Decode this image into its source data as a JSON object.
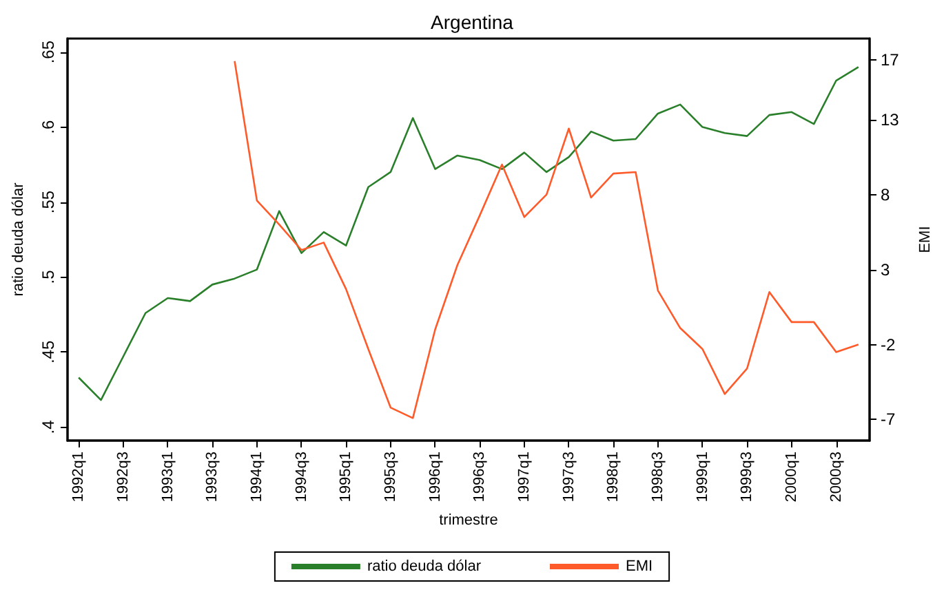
{
  "chart_data": {
    "type": "line",
    "title": "Argentina",
    "xlabel": "trimestre",
    "ylabel": "ratio deuda dólar",
    "y2label": "EMI",
    "categories": [
      "1992q1",
      null,
      "1992q3",
      null,
      "1993q1",
      null,
      "1993q3",
      null,
      "1994q1",
      null,
      "1994q3",
      null,
      "1995q1",
      null,
      "1995q3",
      null,
      "1996q1",
      null,
      "1996q3",
      null,
      "1997q1",
      null,
      "1997q3",
      null,
      "1998q1",
      null,
      "1998q3",
      null,
      "1999q1",
      null,
      "1999q3",
      null,
      "2000q1",
      null,
      "2000q3",
      null
    ],
    "series": [
      {
        "name": "ratio deuda dólar",
        "color": "#2a7f2a",
        "values": [
          0.433,
          0.418,
          0.447,
          0.476,
          0.486,
          0.484,
          0.495,
          0.499,
          0.505,
          0.544,
          0.516,
          0.53,
          0.521,
          0.56,
          0.57,
          0.606,
          0.572,
          0.581,
          0.578,
          0.572,
          0.583,
          0.57,
          0.58,
          0.597,
          0.591,
          0.592,
          0.609,
          0.615,
          0.6,
          0.596,
          0.594,
          0.608,
          0.61,
          0.602,
          0.631,
          0.64
        ]
      },
      {
        "name": "EMI",
        "color": "#ff5a2a",
        "axis": "y2",
        "values": [
          null,
          null,
          null,
          null,
          null,
          null,
          null,
          16.9,
          7.6,
          6.0,
          4.3,
          4.8,
          1.7,
          -2.3,
          -6.2,
          -6.9,
          -1.0,
          3.3,
          6.6,
          10.0,
          6.5,
          8.0,
          12.4,
          7.8,
          9.4,
          9.5,
          1.6,
          -0.9,
          -2.3,
          -5.3,
          -3.6,
          1.5,
          -0.5,
          -0.5,
          -2.5,
          -2.0
        ]
      }
    ],
    "ylim": [
      0.391,
      0.659
    ],
    "yticks": [
      {
        "value": 0.4,
        "label": ".4"
      },
      {
        "value": 0.45,
        "label": ".45"
      },
      {
        "value": 0.5,
        "label": ".5"
      },
      {
        "value": 0.55,
        "label": ".55"
      },
      {
        "value": 0.6,
        "label": ".6"
      },
      {
        "value": 0.65,
        "label": ".65"
      }
    ],
    "y2lim": [
      -8.4,
      18.4
    ],
    "y2ticks": [
      -7,
      -2,
      3,
      8,
      13,
      17
    ],
    "legend": "bottom",
    "marker": "none",
    "line_style": "solid"
  }
}
